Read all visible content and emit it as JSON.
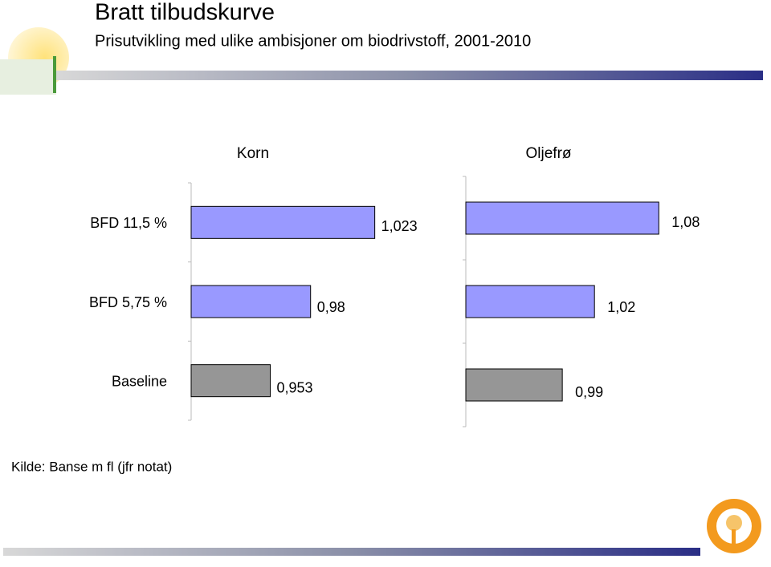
{
  "slide": {
    "title": "Bratt tilbudskurve",
    "subtitle": "Prisutvikling med ulike ambisjoner om biodrivstoff, 2001-2010",
    "source": "Kilde: Banse m fl (jfr notat)"
  },
  "chart_data": [
    {
      "type": "bar",
      "orientation": "horizontal",
      "title": "Korn",
      "categories": [
        "BFD 11,5 %",
        "BFD 5,75 %",
        "Baseline"
      ],
      "values": [
        1.023,
        0.98,
        0.953
      ],
      "value_labels": [
        "1,023",
        "0,98",
        "0,953"
      ],
      "colors": [
        "#9999ff",
        "#9999ff",
        "#969696"
      ],
      "xlim": [
        0.9,
        1.07
      ]
    },
    {
      "type": "bar",
      "orientation": "horizontal",
      "title": "Oljefrø",
      "values": [
        1.08,
        1.02,
        0.99
      ],
      "value_labels": [
        "1,08",
        "1,02",
        "0,99"
      ],
      "colors": [
        "#9999ff",
        "#9999ff",
        "#969696"
      ],
      "xlim": [
        0.9,
        1.1
      ]
    }
  ]
}
